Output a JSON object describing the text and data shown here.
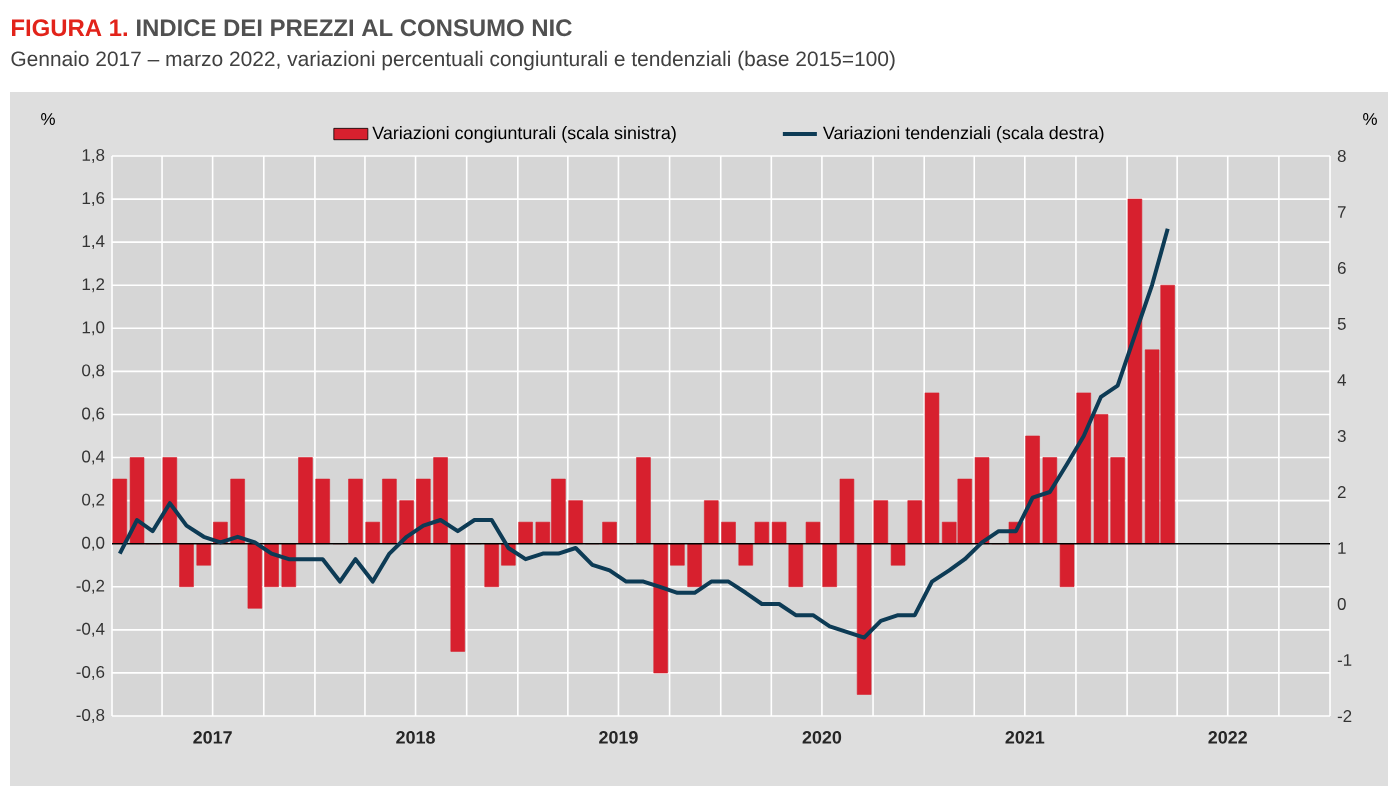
{
  "chart_data": {
    "type": "bar",
    "title": "INDICE DEI PREZZI AL CONSUMO NIC",
    "subtitle": "Gennaio 2017 – marzo 2022, variazioni percentuali congiunturali e tendenziali (base 2015=100)",
    "annotations": [
      "FIGURA 1."
    ],
    "ylabel": "%",
    "y2label": "%",
    "x": [
      "2017-01-15",
      "2017-02-15",
      "2017-03-15",
      "2017-04-15",
      "2017-05-15",
      "2017-06-15",
      "2017-07-15",
      "2017-08-15",
      "2017-09-15",
      "2017-10-15",
      "2017-11-15",
      "2017-12-15",
      "2018-01-15",
      "2018-02-15",
      "2018-03-15",
      "2018-04-15",
      "2018-05-15",
      "2018-06-15",
      "2018-07-15",
      "2018-08-15",
      "2018-09-15",
      "2018-10-15",
      "2018-11-15",
      "2018-12-15",
      "2019-01-15",
      "2019-02-15",
      "2019-03-15",
      "2019-04-15",
      "2019-05-15",
      "2019-06-15",
      "2019-07-15",
      "2019-08-15",
      "2019-09-15",
      "2019-10-15",
      "2019-11-15",
      "2019-12-15",
      "2020-01-15",
      "2020-02-15",
      "2020-03-15",
      "2020-04-15",
      "2020-05-15",
      "2020-06-15",
      "2020-07-15",
      "2020-08-15",
      "2020-09-15",
      "2020-10-15",
      "2020-11-15",
      "2020-12-15",
      "2021-01-15",
      "2021-02-15",
      "2021-03-15",
      "2021-04-15",
      "2021-05-15",
      "2021-06-15",
      "2021-07-15",
      "2021-08-15",
      "2021-09-15",
      "2021-10-15",
      "2021-11-15",
      "2021-12-15",
      "2022-01-15",
      "2022-02-15",
      "2022-03-15"
    ],
    "series": [
      {
        "name": "Variazioni congiunturali (scala sinistra)",
        "color": "#d7202e",
        "values": [
          0.3,
          0.4,
          0.0,
          0.4,
          -0.2,
          -0.1,
          0.1,
          0.3,
          -0.3,
          -0.2,
          -0.2,
          0.4,
          0.3,
          0.0,
          0.3,
          0.1,
          0.3,
          0.2,
          0.3,
          0.4,
          -0.5,
          0.0,
          -0.2,
          -0.1,
          0.1,
          0.1,
          0.3,
          0.2,
          0.0,
          0.1,
          0.0,
          0.4,
          -0.6,
          -0.1,
          -0.2,
          0.2,
          0.1,
          -0.1,
          0.1,
          0.1,
          -0.2,
          0.1,
          -0.2,
          0.3,
          -0.7,
          0.2,
          -0.1,
          0.2,
          0.7,
          0.1,
          0.3,
          0.4,
          0.0,
          0.1,
          0.5,
          0.4,
          -0.2,
          0.7,
          0.6,
          0.4,
          1.6,
          0.9,
          1.2
        ]
      },
      {
        "name": "Variazioni tendenziali (scala destra)",
        "type": "line",
        "axis": "y2",
        "color": "#0d3b55",
        "values": [
          0.9,
          1.5,
          1.3,
          1.8,
          1.4,
          1.2,
          1.1,
          1.2,
          1.1,
          0.9,
          0.8,
          0.8,
          0.8,
          0.4,
          0.8,
          0.4,
          0.9,
          1.2,
          1.4,
          1.5,
          1.3,
          1.5,
          1.5,
          1.0,
          0.8,
          0.9,
          0.9,
          1.0,
          0.7,
          0.6,
          0.4,
          0.4,
          0.3,
          0.2,
          0.2,
          0.4,
          0.4,
          0.2,
          0.0,
          0.0,
          -0.2,
          -0.2,
          -0.4,
          -0.5,
          -0.6,
          -0.3,
          -0.2,
          -0.2,
          0.4,
          0.6,
          0.8,
          1.1,
          1.3,
          1.3,
          1.9,
          2.0,
          2.5,
          3.0,
          3.7,
          3.9,
          4.8,
          5.7,
          6.7
        ]
      }
    ],
    "xlim": [
      "2017-01-01",
      "2023-01-01"
    ],
    "xticks": [
      {
        "value": "2017-01-01",
        "label": null
      },
      {
        "value": "2017-04-01",
        "label": null
      },
      {
        "value": "2017-07-01",
        "label": "2017"
      },
      {
        "value": "2017-10-01",
        "label": null
      },
      {
        "value": "2018-01-01",
        "label": null
      },
      {
        "value": "2018-04-01",
        "label": null
      },
      {
        "value": "2018-07-01",
        "label": "2018"
      },
      {
        "value": "2018-10-01",
        "label": null
      },
      {
        "value": "2019-01-01",
        "label": null
      },
      {
        "value": "2019-04-01",
        "label": null
      },
      {
        "value": "2019-07-01",
        "label": "2019"
      },
      {
        "value": "2019-10-01",
        "label": null
      },
      {
        "value": "2020-01-01",
        "label": null
      },
      {
        "value": "2020-04-01",
        "label": null
      },
      {
        "value": "2020-07-01",
        "label": "2020"
      },
      {
        "value": "2020-10-01",
        "label": null
      },
      {
        "value": "2021-01-01",
        "label": null
      },
      {
        "value": "2021-04-01",
        "label": null
      },
      {
        "value": "2021-07-01",
        "label": "2021"
      },
      {
        "value": "2021-10-01",
        "label": null
      },
      {
        "value": "2022-01-01",
        "label": null
      },
      {
        "value": "2022-04-01",
        "label": null
      },
      {
        "value": "2022-07-01",
        "label": "2022"
      },
      {
        "value": "2022-10-01",
        "label": null
      },
      {
        "value": "2023-01-01",
        "label": null
      }
    ],
    "ylim": [
      -0.8,
      1.8
    ],
    "yticks": [
      {
        "value": -0.8,
        "label": "-0,8"
      },
      {
        "value": -0.6,
        "label": "-0,6"
      },
      {
        "value": -0.4,
        "label": "-0,4"
      },
      {
        "value": -0.2,
        "label": "-0,2"
      },
      {
        "value": 0,
        "label": "0,0"
      },
      {
        "value": 0.2,
        "label": "0,2"
      },
      {
        "value": 0.4,
        "label": "0,4"
      },
      {
        "value": 0.6,
        "label": "0,6"
      },
      {
        "value": 0.8,
        "label": "0,8"
      },
      {
        "value": 1.0,
        "label": "1,0"
      },
      {
        "value": 1.2,
        "label": "1,2"
      },
      {
        "value": 1.4,
        "label": "1,4"
      },
      {
        "value": 1.6,
        "label": "1,6"
      },
      {
        "value": 1.8,
        "label": "1,8"
      }
    ],
    "y2lim": [
      -2,
      8
    ],
    "y2ticks": [
      -2,
      -1,
      0,
      1,
      2,
      3,
      4,
      5,
      6,
      7,
      8
    ],
    "ref_lines": [
      {
        "axis": "y",
        "value": 0,
        "color": "#000000"
      }
    ],
    "grid": true,
    "legend": "top"
  }
}
